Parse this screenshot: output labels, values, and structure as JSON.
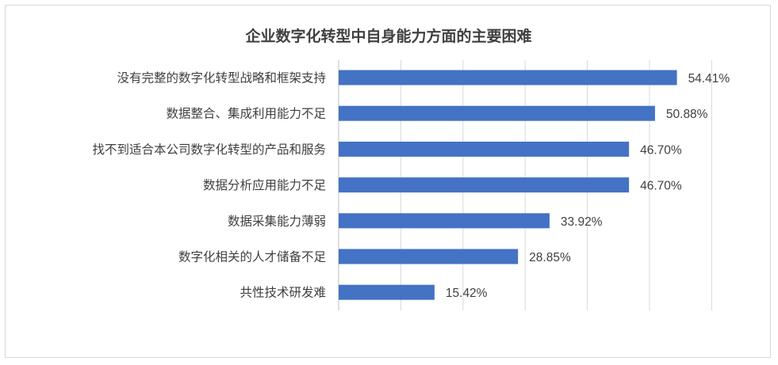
{
  "chart_data": {
    "type": "bar",
    "orientation": "horizontal",
    "title": "企业数字化转型中自身能力方面的主要困难",
    "xlabel": "",
    "ylabel": "",
    "xlim": [
      0,
      60
    ],
    "grid": "vertical",
    "legend": "none",
    "bar_color": "#4472c4",
    "categories": [
      "没有完整的数字化转型战略和框架支持",
      "数据整合、集成利用能力不足",
      "找不到适合本公司数字化转型的产品和服务",
      "数据分析应用能力不足",
      "数据采集能力薄弱",
      "数字化相关的人才储备不足",
      "共性技术研发难"
    ],
    "values": [
      54.41,
      50.88,
      46.7,
      46.7,
      33.92,
      28.85,
      15.42
    ],
    "value_labels": [
      "54.41%",
      "50.88%",
      "46.70%",
      "46.70%",
      "33.92%",
      "28.85%",
      "15.42%"
    ]
  }
}
